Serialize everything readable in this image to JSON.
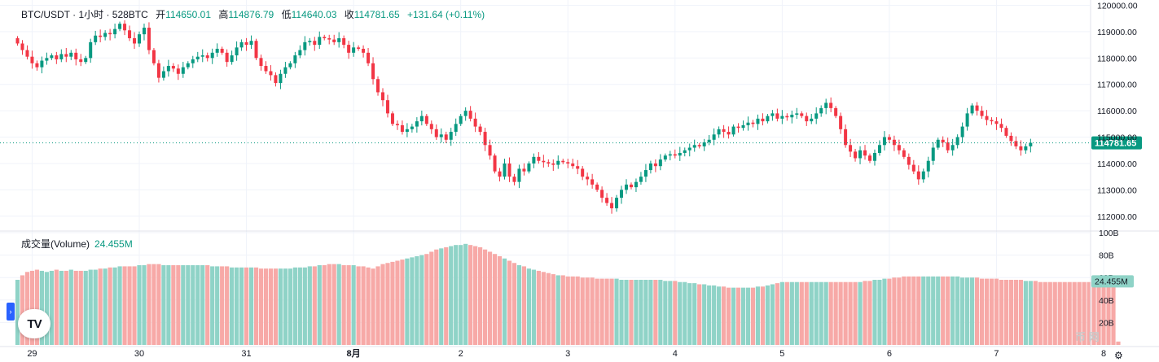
{
  "header": {
    "symbol": "BTC/USDT · 1小时 · 528BTC",
    "open_label": "开",
    "open_value": "114650.01",
    "high_label": "高",
    "high_value": "114876.79",
    "low_label": "低",
    "low_value": "114640.03",
    "close_label": "收",
    "close_value": "114781.65",
    "change": "+131.64 (+0.11%)"
  },
  "volume_legend": {
    "label": "成交量(Volume)",
    "value": "24.455M"
  },
  "logo_text": "TV",
  "side_tab_icon": "chevron-right-icon",
  "side_tab_glyph": "›",
  "settings_icon": "gear-icon",
  "settings_glyph": "⚙",
  "watermark": "币 网",
  "colors": {
    "up": "#089981",
    "down": "#f23645",
    "vol_up": "#8fd3c7",
    "vol_down": "#f7a9a7",
    "grid": "#f0f3fa",
    "axis_text": "#131722"
  },
  "chart_data": {
    "type": "candlestick",
    "title": "BTC/USDT · 1小时 · 528BTC",
    "price_axis": {
      "ylim": [
        111500,
        120200
      ],
      "ticks": [
        112000,
        113000,
        114000,
        115000,
        116000,
        117000,
        118000,
        119000,
        120000
      ],
      "tick_labels": [
        "112000.00",
        "113000.00",
        "114000.00",
        "115000.00",
        "116000.00",
        "117000.00",
        "118000.00",
        "119000.00",
        "120000.00"
      ]
    },
    "last_price": 114781.65,
    "last_price_label": "114781.65",
    "volume_axis": {
      "ylim": [
        0,
        100
      ],
      "ticks": [
        20,
        40,
        60,
        80,
        100
      ],
      "tick_labels": [
        "20B",
        "40B",
        "60B",
        "80B",
        "100B"
      ],
      "unit": "B"
    },
    "last_volume_label": "24.455M",
    "x_ticks": [
      {
        "label": "29",
        "bar": 3
      },
      {
        "label": "30",
        "bar": 25
      },
      {
        "label": "31",
        "bar": 47
      },
      {
        "label": "8月",
        "bar": 69
      },
      {
        "label": "2",
        "bar": 91
      },
      {
        "label": "3",
        "bar": 113
      },
      {
        "label": "4",
        "bar": 135
      },
      {
        "label": "5",
        "bar": 157
      },
      {
        "label": "6",
        "bar": 179
      },
      {
        "label": "7",
        "bar": 201
      },
      {
        "label": "8",
        "bar": 223
      }
    ],
    "closes": [
      118550,
      118300,
      118050,
      117800,
      117650,
      117900,
      118000,
      118100,
      117950,
      118150,
      118050,
      118200,
      117950,
      117850,
      118000,
      118600,
      118850,
      118800,
      118950,
      118900,
      119100,
      119300,
      119050,
      118750,
      118550,
      118900,
      119150,
      118300,
      117800,
      117250,
      117500,
      117700,
      117600,
      117400,
      117650,
      117800,
      117950,
      118050,
      118100,
      118000,
      118200,
      118350,
      118200,
      117850,
      118100,
      118400,
      118600,
      118500,
      118650,
      118000,
      117700,
      117500,
      117350,
      117050,
      117400,
      117650,
      117800,
      118100,
      118300,
      118600,
      118650,
      118500,
      118800,
      118750,
      118700,
      118600,
      118750,
      118500,
      118200,
      118400,
      118350,
      118200,
      117800,
      117200,
      116700,
      116400,
      115900,
      115500,
      115450,
      115200,
      115300,
      115400,
      115600,
      115800,
      115500,
      115300,
      115000,
      115100,
      114900,
      115200,
      115500,
      115800,
      116000,
      115700,
      115400,
      115200,
      114700,
      114300,
      113700,
      113500,
      114000,
      113500,
      113300,
      113800,
      113700,
      114000,
      114250,
      114100,
      114050,
      114000,
      113950,
      114100,
      114050,
      114000,
      113900,
      113800,
      113500,
      113400,
      113200,
      113000,
      112700,
      112500,
      112300,
      112700,
      113000,
      113200,
      113100,
      113300,
      113500,
      113750,
      114000,
      113900,
      114150,
      114300,
      114350,
      114300,
      114400,
      114500,
      114600,
      114700,
      114650,
      114800,
      114900,
      115100,
      115300,
      115200,
      115100,
      115400,
      115350,
      115450,
      115550,
      115500,
      115700,
      115600,
      115800,
      115900,
      115700,
      115800,
      115750,
      115850,
      115900,
      115800,
      115600,
      115700,
      115900,
      116100,
      116300,
      116100,
      115800,
      115300,
      114700,
      114450,
      114200,
      114500,
      114300,
      114100,
      114400,
      114700,
      115000,
      114900,
      114700,
      114500,
      114250,
      113950,
      113700,
      113400,
      113700,
      114100,
      114600,
      114900,
      114800,
      114500,
      114700,
      115000,
      115400,
      115900,
      116200,
      116000,
      115800,
      115650,
      115600,
      115500,
      115350,
      115050,
      114850,
      114650,
      114500,
      114650,
      114781.65
    ],
    "volumes": [
      58,
      62,
      65,
      66,
      67,
      66,
      65,
      66,
      67,
      66,
      66,
      67,
      66,
      66,
      66,
      67,
      67,
      68,
      68,
      69,
      69,
      70,
      70,
      70,
      70,
      71,
      71,
      72,
      72,
      72,
      71,
      71,
      71,
      71,
      71,
      71,
      71,
      71,
      71,
      71,
      70,
      70,
      70,
      70,
      69,
      69,
      69,
      69,
      69,
      69,
      68,
      68,
      68,
      68,
      68,
      68,
      68,
      69,
      69,
      69,
      70,
      70,
      71,
      71,
      72,
      72,
      72,
      71,
      71,
      71,
      70,
      70,
      69,
      68,
      70,
      72,
      73,
      74,
      75,
      76,
      77,
      78,
      79,
      80,
      81,
      83,
      85,
      86,
      87,
      88,
      89,
      89,
      90,
      89,
      88,
      87,
      85,
      83,
      81,
      79,
      77,
      75,
      73,
      71,
      70,
      68,
      67,
      66,
      65,
      64,
      63,
      62,
      62,
      61,
      61,
      61,
      60,
      60,
      60,
      59,
      59,
      59,
      59,
      59,
      58,
      58,
      58,
      58,
      58,
      58,
      58,
      58,
      58,
      57,
      57,
      57,
      56,
      56,
      55,
      55,
      54,
      54,
      53,
      53,
      52,
      52,
      51,
      51,
      51,
      51,
      51,
      51,
      52,
      52,
      53,
      54,
      55,
      56,
      56,
      56,
      56,
      56,
      56,
      56,
      56,
      56,
      56,
      56,
      56,
      56,
      56,
      56,
      56,
      56,
      57,
      57,
      58,
      58,
      59,
      59,
      60,
      60,
      61,
      61,
      61,
      61,
      61,
      61,
      61,
      61,
      61,
      61,
      61,
      61,
      60,
      60,
      60,
      60,
      59,
      59,
      59,
      59,
      58,
      58,
      58,
      58,
      58,
      57,
      57,
      57,
      56,
      56,
      56,
      56,
      56,
      56,
      56,
      56,
      56,
      56,
      56,
      56,
      56,
      56,
      56,
      56,
      3
    ]
  }
}
